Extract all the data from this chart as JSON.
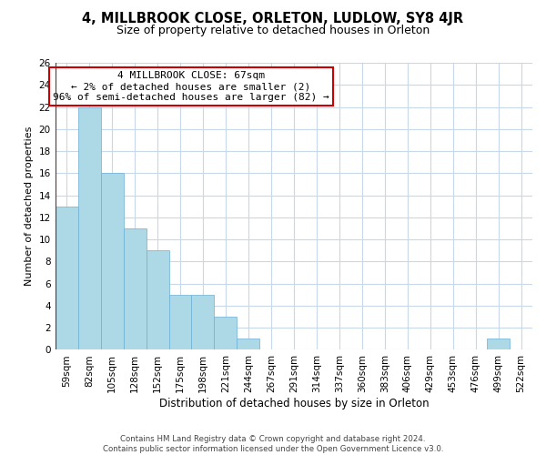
{
  "title": "4, MILLBROOK CLOSE, ORLETON, LUDLOW, SY8 4JR",
  "subtitle": "Size of property relative to detached houses in Orleton",
  "xlabel": "Distribution of detached houses by size in Orleton",
  "ylabel": "Number of detached properties",
  "bar_labels": [
    "59sqm",
    "82sqm",
    "105sqm",
    "128sqm",
    "152sqm",
    "175sqm",
    "198sqm",
    "221sqm",
    "244sqm",
    "267sqm",
    "291sqm",
    "314sqm",
    "337sqm",
    "360sqm",
    "383sqm",
    "406sqm",
    "429sqm",
    "453sqm",
    "476sqm",
    "499sqm",
    "522sqm"
  ],
  "bar_values": [
    13,
    22,
    16,
    11,
    9,
    5,
    5,
    3,
    1,
    0,
    0,
    0,
    0,
    0,
    0,
    0,
    0,
    0,
    0,
    1,
    0
  ],
  "bar_color": "#add8e6",
  "bar_edge_color": "#6baed6",
  "annotation_title": "4 MILLBROOK CLOSE: 67sqm",
  "annotation_line1": "← 2% of detached houses are smaller (2)",
  "annotation_line2": "96% of semi-detached houses are larger (82) →",
  "subject_line_color": "#cc0000",
  "annotation_box_color": "#ffffff",
  "annotation_box_edge_color": "#cc0000",
  "ylim": [
    0,
    26
  ],
  "yticks": [
    0,
    2,
    4,
    6,
    8,
    10,
    12,
    14,
    16,
    18,
    20,
    22,
    24,
    26
  ],
  "footer_line1": "Contains HM Land Registry data © Crown copyright and database right 2024.",
  "footer_line2": "Contains public sector information licensed under the Open Government Licence v3.0.",
  "background_color": "#ffffff",
  "grid_color": "#c8d8e8"
}
